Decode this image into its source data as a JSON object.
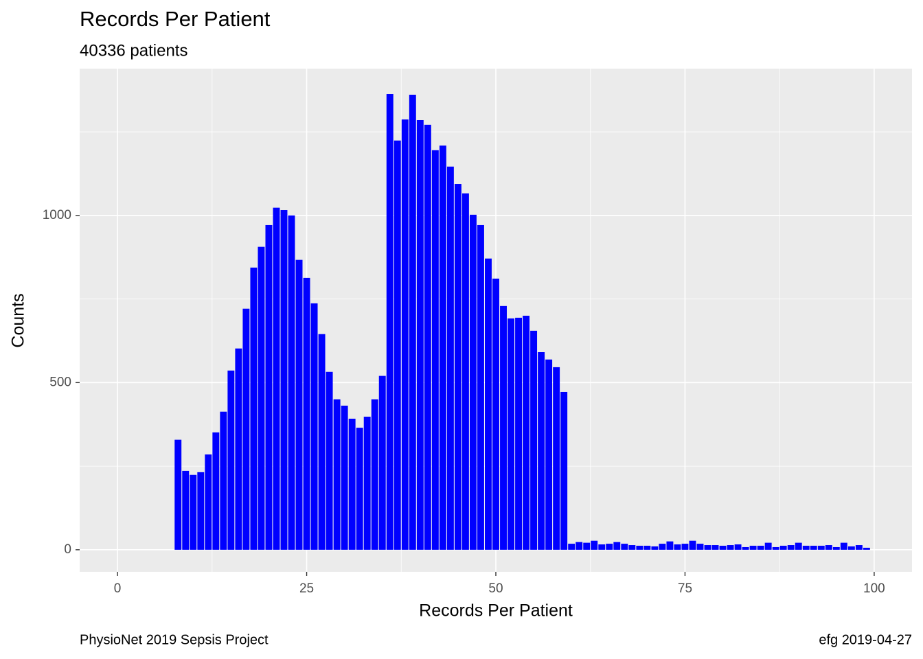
{
  "chart_data": {
    "type": "bar",
    "title": "Records Per Patient",
    "subtitle": "40336 patients",
    "xlabel": "Records Per Patient",
    "ylabel": "Counts",
    "caption_left": "PhysioNet 2019 Sepsis Project",
    "caption_right": "efg 2019-04-27",
    "color": "#0000ff",
    "grid": true,
    "x": [
      8,
      9,
      10,
      11,
      12,
      13,
      14,
      15,
      16,
      17,
      18,
      19,
      20,
      21,
      22,
      23,
      24,
      25,
      26,
      27,
      28,
      29,
      30,
      31,
      32,
      33,
      34,
      35,
      36,
      37,
      38,
      39,
      40,
      41,
      42,
      43,
      44,
      45,
      46,
      47,
      48,
      49,
      50,
      51,
      52,
      53,
      54,
      55,
      56,
      57,
      58,
      59,
      60,
      61,
      62,
      63,
      64,
      65,
      66,
      67,
      68,
      69,
      70,
      71,
      72,
      73,
      74,
      75,
      76,
      77,
      78,
      79,
      80,
      81,
      82,
      83,
      84,
      85,
      86,
      87,
      88,
      89,
      90,
      91,
      92,
      93,
      94,
      95,
      96,
      97,
      98,
      99
    ],
    "values": [
      329,
      236,
      224,
      232,
      285,
      351,
      413,
      536,
      602,
      721,
      844,
      906,
      971,
      1023,
      1016,
      1000,
      867,
      813,
      737,
      645,
      532,
      450,
      431,
      392,
      365,
      398,
      450,
      520,
      1363,
      1224,
      1287,
      1361,
      1285,
      1271,
      1195,
      1209,
      1146,
      1094,
      1066,
      1002,
      971,
      871,
      811,
      729,
      692,
      694,
      700,
      655,
      591,
      569,
      546,
      472,
      18,
      23,
      21,
      27,
      16,
      18,
      23,
      18,
      14,
      12,
      12,
      10,
      18,
      25,
      16,
      18,
      27,
      18,
      14,
      14,
      12,
      14,
      16,
      8,
      12,
      12,
      21,
      8,
      12,
      14,
      21,
      12,
      12,
      12,
      14,
      8,
      21,
      10,
      14,
      6
    ],
    "xlim": [
      -5,
      105
    ],
    "ylim": [
      -66,
      1439
    ],
    "xticks": [
      0,
      25,
      50,
      75,
      100
    ],
    "yticks": [
      0,
      500,
      1000
    ]
  }
}
